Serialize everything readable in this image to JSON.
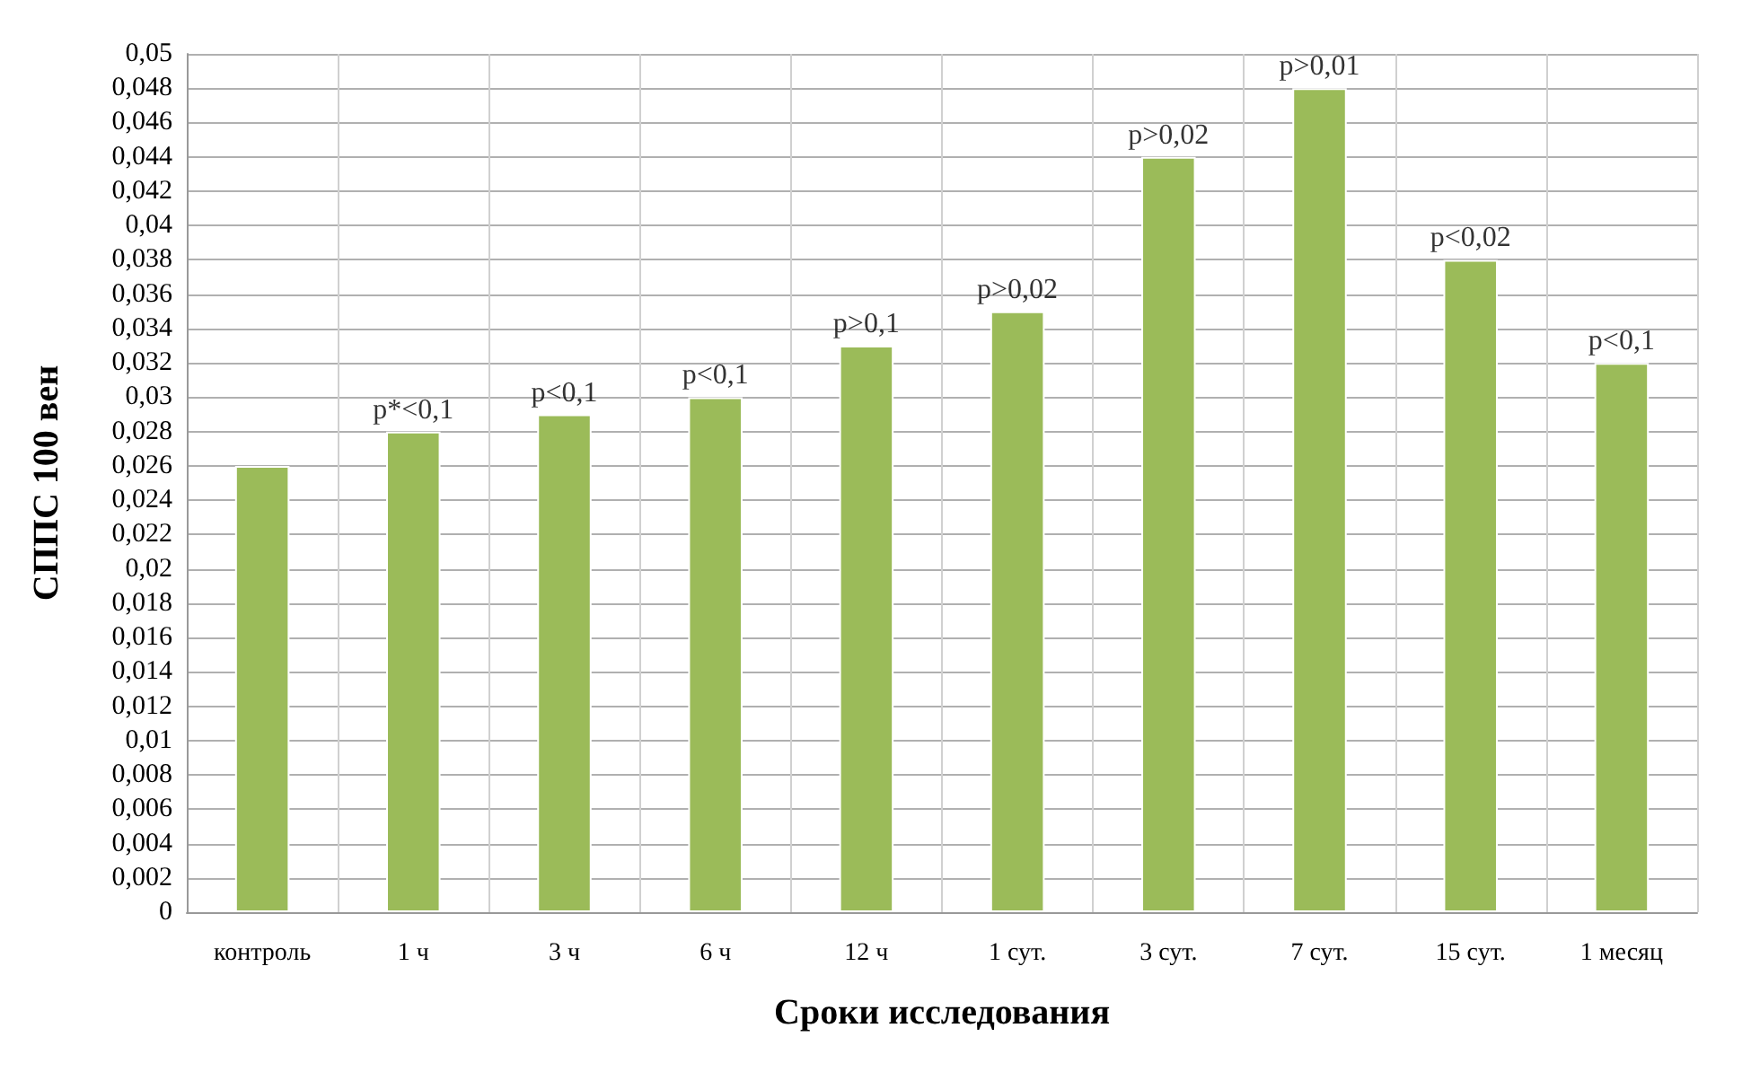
{
  "chart_data": {
    "type": "bar",
    "xlabel": "Сроки исследования",
    "ylabel": "СППС 100 вен",
    "categories": [
      "контроль",
      "1 ч",
      "3 ч",
      "6 ч",
      "12 ч",
      "1 сут.",
      "3 сут.",
      "7 сут.",
      "15 сут.",
      "1 месяц"
    ],
    "values": [
      0.026,
      0.028,
      0.029,
      0.03,
      0.033,
      0.035,
      0.044,
      0.048,
      0.038,
      0.032
    ],
    "color": "#9bbb59",
    "ylim": [
      0,
      0.05
    ],
    "yticks": [
      {
        "value": 0,
        "label": "0"
      },
      {
        "value": 0.002,
        "label": "0,002"
      },
      {
        "value": 0.004,
        "label": "0,004"
      },
      {
        "value": 0.006,
        "label": "0,006"
      },
      {
        "value": 0.008,
        "label": "0,008"
      },
      {
        "value": 0.01,
        "label": "0,01"
      },
      {
        "value": 0.012,
        "label": "0,012"
      },
      {
        "value": 0.014,
        "label": "0,014"
      },
      {
        "value": 0.016,
        "label": "0,016"
      },
      {
        "value": 0.018,
        "label": "0,018"
      },
      {
        "value": 0.02,
        "label": "0,02"
      },
      {
        "value": 0.022,
        "label": "0,022"
      },
      {
        "value": 0.024,
        "label": "0,024"
      },
      {
        "value": 0.026,
        "label": "0,026"
      },
      {
        "value": 0.028,
        "label": "0,028"
      },
      {
        "value": 0.03,
        "label": "0,03"
      },
      {
        "value": 0.032,
        "label": "0,032"
      },
      {
        "value": 0.034,
        "label": "0,034"
      },
      {
        "value": 0.036,
        "label": "0,036"
      },
      {
        "value": 0.038,
        "label": "0,038"
      },
      {
        "value": 0.04,
        "label": "0,04"
      },
      {
        "value": 0.042,
        "label": "0,042"
      },
      {
        "value": 0.044,
        "label": "0,044"
      },
      {
        "value": 0.046,
        "label": "0,046"
      },
      {
        "value": 0.048,
        "label": "0,048"
      },
      {
        "value": 0.05,
        "label": "0,05"
      }
    ],
    "grid": true,
    "annotations": [
      {
        "text": "p*<0,1",
        "x": "1 ч",
        "y": 0.028
      },
      {
        "text": "p<0,1",
        "x": "3 ч",
        "y": 0.029
      },
      {
        "text": "p<0,1",
        "x": "6 ч",
        "y": 0.03
      },
      {
        "text": "p>0,1",
        "x": "12 ч",
        "y": 0.033
      },
      {
        "text": "p>0,02",
        "x": "1 сут.",
        "y": 0.035
      },
      {
        "text": "p>0,02",
        "x": "3 сут.",
        "y": 0.044
      },
      {
        "text": "p>0,01",
        "x": "7 сут.",
        "y": 0.048
      },
      {
        "text": "p<0,02",
        "x": "15 сут.",
        "y": 0.038
      },
      {
        "text": "p<0,1",
        "x": "1 месяц",
        "y": 0.032
      }
    ]
  }
}
